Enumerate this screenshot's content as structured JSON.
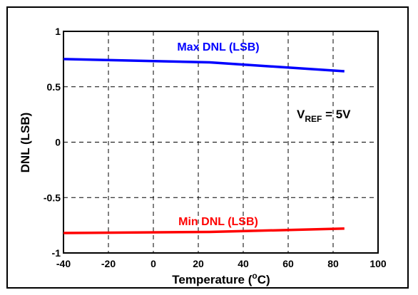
{
  "chart_data": {
    "type": "line",
    "xlabel": "Temperature (",
    "xlabel_sup": "o",
    "xlabel_suffix": "C)",
    "ylabel": "DNL (LSB)",
    "xlim": [
      -40,
      100
    ],
    "ylim": [
      -1,
      1
    ],
    "x_ticks": [
      -40,
      -20,
      0,
      20,
      40,
      60,
      80,
      100
    ],
    "x_tick_labels": [
      "-40",
      "-20",
      "0",
      "20",
      "40",
      "60",
      "80",
      "100"
    ],
    "y_ticks": [
      -1,
      -0.5,
      0,
      0.5,
      1
    ],
    "y_tick_labels": [
      "-1",
      "-0.5",
      "0",
      "0.5",
      "1"
    ],
    "grid": true,
    "series": [
      {
        "name": "Max DNL (LSB)",
        "color": "#0000ff",
        "x": [
          -40,
          25,
          85
        ],
        "y": [
          0.75,
          0.72,
          0.64
        ]
      },
      {
        "name": "Min DNL (LSB)",
        "color": "#ff0000",
        "x": [
          -40,
          25,
          85
        ],
        "y": [
          -0.82,
          -0.81,
          -0.78
        ]
      }
    ],
    "annotation": {
      "main": "V",
      "sub": "REF",
      "suffix": " = 5V"
    }
  }
}
